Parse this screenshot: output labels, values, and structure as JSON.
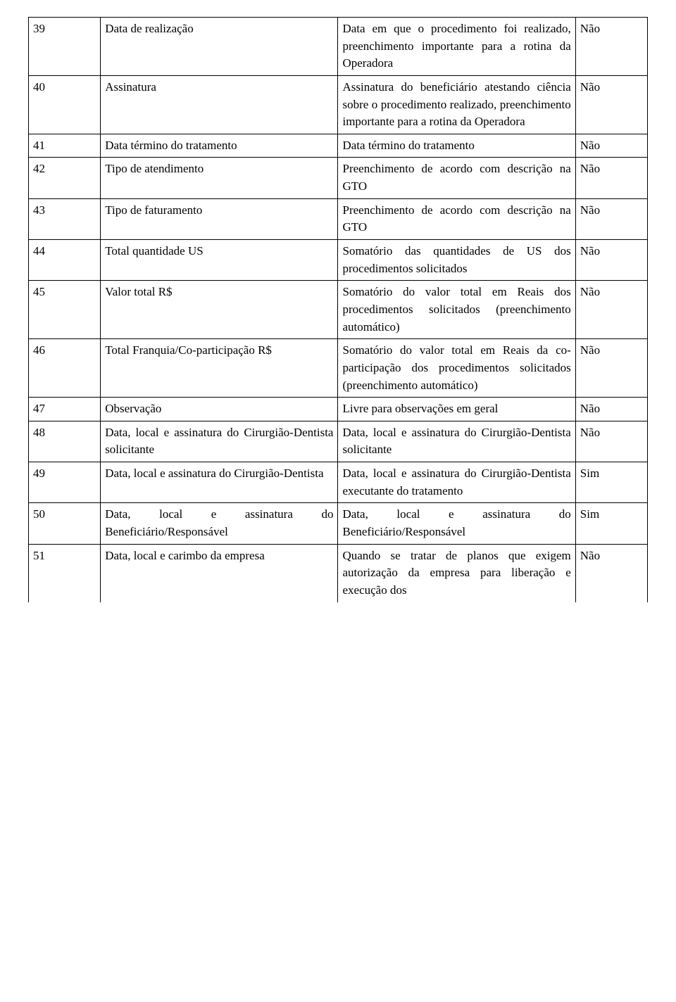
{
  "table": {
    "rows": [
      {
        "num": "39",
        "field": "Data de realização",
        "description": "Data em que o procedimento foi realizado, preenchimento importante para a rotina da Operadora",
        "mandatory": "Não"
      },
      {
        "num": "40",
        "field": "Assinatura",
        "description": "Assinatura do beneficiário atestando ciência sobre o procedimento realizado, preenchimento importante para a rotina da Operadora",
        "mandatory": "Não"
      },
      {
        "num": "41",
        "field": "Data término do tratamento",
        "description": "Data término do tratamento",
        "mandatory": "Não"
      },
      {
        "num": "42",
        "field": "Tipo de atendimento",
        "description": "Preenchimento de acordo com descrição na GTO",
        "mandatory": "Não"
      },
      {
        "num": "43",
        "field": "Tipo de faturamento",
        "description": "Preenchimento de acordo com descrição na GTO",
        "mandatory": "Não"
      },
      {
        "num": "44",
        "field": "Total quantidade US",
        "description": "Somatório das quantidades de US dos procedimentos solicitados",
        "mandatory": "Não"
      },
      {
        "num": "45",
        "field": "Valor total R$",
        "description": "Somatório do valor total em Reais dos procedimentos solicitados (preenchimento automático)",
        "mandatory": "Não"
      },
      {
        "num": "46",
        "field": "Total Franquia/Co-participação R$",
        "description": "Somatório do valor total em Reais da co-participação dos procedimentos solicitados (preenchimento automático)",
        "mandatory": "Não"
      },
      {
        "num": "47",
        "field": "Observação",
        "description": "Livre para observações em geral",
        "mandatory": "Não"
      },
      {
        "num": "48",
        "field": "Data, local e assinatura do Cirurgião-Dentista solicitante",
        "description": "Data, local e assinatura do Cirurgião-Dentista solicitante",
        "mandatory": "Não"
      },
      {
        "num": "49",
        "field": "Data, local e assinatura do Cirurgião-Dentista",
        "description": "Data, local e assinatura do Cirurgião-Dentista executante do tratamento",
        "mandatory": "Sim"
      },
      {
        "num": "50",
        "field": "Data, local e assinatura do Beneficiário/Responsável",
        "description": "Data, local e assinatura do Beneficiário/Responsável",
        "mandatory": "Sim"
      },
      {
        "num": "51",
        "field": "Data, local e carimbo da empresa",
        "description": "Quando se tratar de planos que exigem autorização da empresa para liberação e execução dos",
        "mandatory": "Não"
      }
    ]
  }
}
